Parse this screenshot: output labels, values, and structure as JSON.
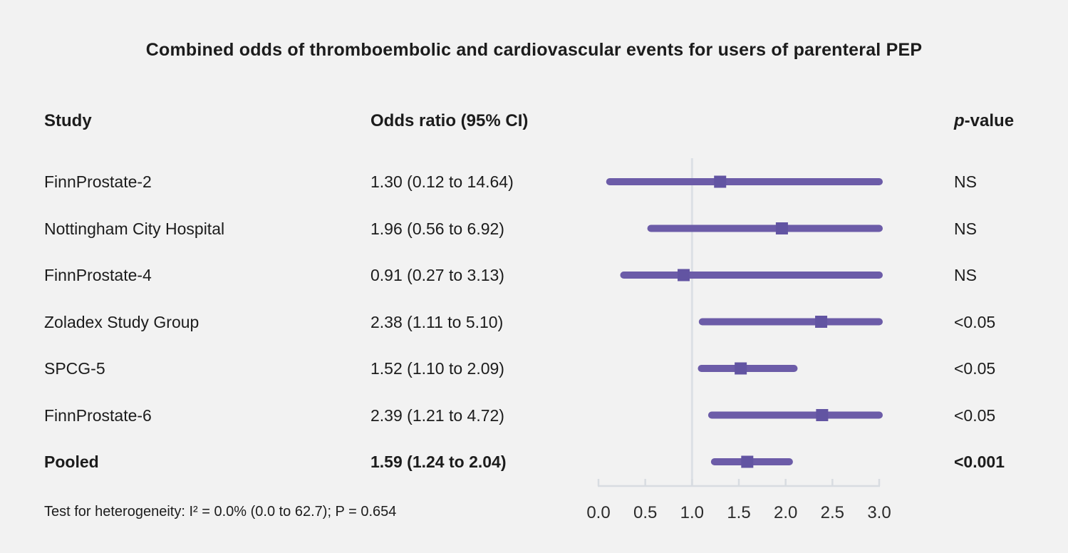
{
  "title": "Combined odds of thromboembolic and cardiovascular events for users of parenteral PEP",
  "columns": {
    "study": "Study",
    "odds_ratio": "Odds ratio (95% CI)",
    "p_value": "p-value"
  },
  "footer": {
    "heterogeneity": "Test for heterogeneity: I² = 0.0% (0.0 to 62.7); P = 0.654"
  },
  "colors": {
    "background": "#f2f2f2",
    "ci_line": "#6C5CA8",
    "marker": "#6254A2",
    "axis": "#D8DCE1",
    "reference_line": "#DCE0E5",
    "text": "#1C1C1C"
  },
  "chart_data": {
    "type": "forest",
    "title": "Combined odds of thromboembolic and cardiovascular events for users of parenteral PEP",
    "x_axis": {
      "range": [
        0.0,
        3.0
      ],
      "ticks": [
        0.0,
        0.5,
        1.0,
        1.5,
        2.0,
        2.5,
        3.0
      ],
      "tick_labels": [
        "0.0",
        "0.5",
        "1.0",
        "1.5",
        "2.0",
        "2.5",
        "3.0"
      ],
      "reference_line": 1.0,
      "truncate_upper_at": 3.0
    },
    "studies": [
      {
        "name": "FinnProstate-2",
        "or": 1.3,
        "ci_low": 0.12,
        "ci_high": 14.64,
        "or_label": "1.30 (0.12 to 14.64)",
        "p_value": "NS",
        "bold": false
      },
      {
        "name": "Nottingham City Hospital",
        "or": 1.96,
        "ci_low": 0.56,
        "ci_high": 6.92,
        "or_label": "1.96 (0.56 to 6.92)",
        "p_value": "NS",
        "bold": false
      },
      {
        "name": "FinnProstate-4",
        "or": 0.91,
        "ci_low": 0.27,
        "ci_high": 3.13,
        "or_label": "0.91 (0.27 to 3.13)",
        "p_value": "NS",
        "bold": false
      },
      {
        "name": "Zoladex Study Group",
        "or": 2.38,
        "ci_low": 1.11,
        "ci_high": 5.1,
        "or_label": "2.38 (1.11 to 5.10)",
        "p_value": "<0.05",
        "bold": false
      },
      {
        "name": "SPCG-5",
        "or": 1.52,
        "ci_low": 1.1,
        "ci_high": 2.09,
        "or_label": "1.52 (1.10 to 2.09)",
        "p_value": "<0.05",
        "bold": false
      },
      {
        "name": "FinnProstate-6",
        "or": 2.39,
        "ci_low": 1.21,
        "ci_high": 4.72,
        "or_label": "2.39 (1.21 to 4.72)",
        "p_value": "<0.05",
        "bold": false
      },
      {
        "name": "Pooled",
        "or": 1.59,
        "ci_low": 1.24,
        "ci_high": 2.04,
        "or_label": "1.59 (1.24 to 2.04)",
        "p_value": "<0.001",
        "bold": true
      }
    ]
  }
}
